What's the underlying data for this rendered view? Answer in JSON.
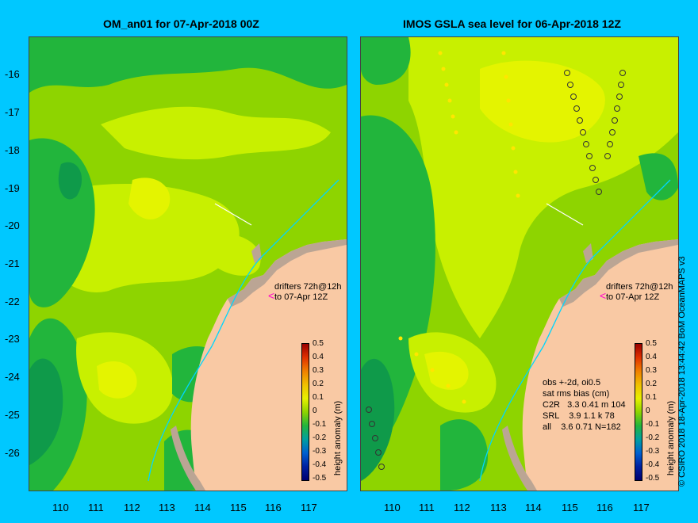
{
  "titles": {
    "left": "OM_an01 for 07-Apr-2018 00Z",
    "right": "IMOS GSLA sea level  for 06-Apr-2018 12Z"
  },
  "axes": {
    "lat_labels": [
      "-16",
      "-17",
      "-18",
      "-19",
      "-20",
      "-21",
      "-22",
      "-23",
      "-24",
      "-25",
      "-26"
    ],
    "lon_labels": [
      "110",
      "111",
      "112",
      "113",
      "114",
      "115",
      "116",
      "117"
    ]
  },
  "drifters": {
    "line1": "drifters 72h@12h",
    "line2": "to 07-Apr 12Z"
  },
  "colorbar": {
    "title": "height anomaly (m)",
    "labels": [
      "0.5",
      "0.4",
      "0.3",
      "0.2",
      "0.1",
      "0",
      "-0.1",
      "-0.2",
      "-0.3",
      "-0.4",
      "-0.5"
    ]
  },
  "stats": {
    "line1": "obs +-2d, oi0.5",
    "line2": "sat rms bias (cm)",
    "line3": "C2R   3.3 0.41 m 104",
    "line4": "SRL    3.9 1.1 k 78",
    "line5": "all    3.6 0.71 N=182"
  },
  "credit": "© CSIRO 2018  18-Apr-2018 13:44:42 BoM OceanMAPS v3",
  "colors": {
    "background": "#00c8ff",
    "land": "#f9c9a4",
    "coast": "#bba594",
    "anomaly_zero": "#8ed400",
    "anomaly_pos": "#c8f000",
    "anomaly_neg": "#22b53c"
  }
}
